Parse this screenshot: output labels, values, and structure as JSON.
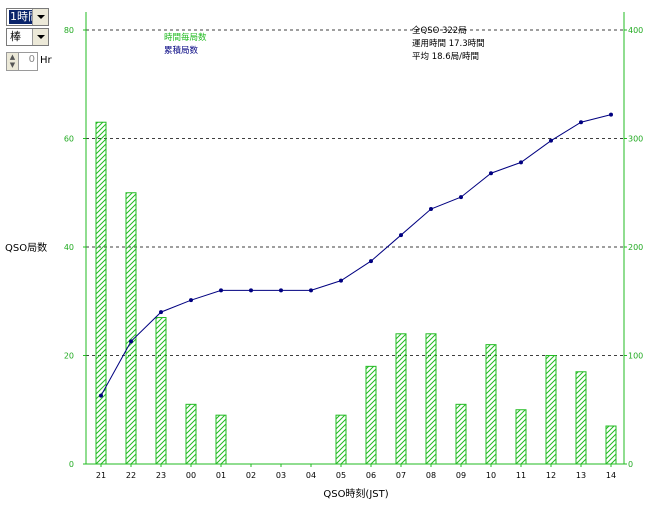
{
  "controls": {
    "mode_select": "1時間",
    "style_select": "棒",
    "hours_value": "0",
    "hours_unit": "Hr"
  },
  "colors": {
    "bar": "#22bb22",
    "line": "#000080",
    "axis": "#22bb22",
    "grid": "#000000"
  },
  "chart_data": {
    "type": "bar",
    "categories": [
      "21",
      "22",
      "23",
      "00",
      "01",
      "02",
      "03",
      "04",
      "05",
      "06",
      "07",
      "08",
      "09",
      "10",
      "11",
      "12",
      "13",
      "14"
    ],
    "series": [
      {
        "name": "時間毎局数",
        "type": "bar",
        "axis": "left",
        "values": [
          63,
          50,
          27,
          11,
          9,
          0,
          0,
          0,
          9,
          18,
          24,
          24,
          11,
          22,
          10,
          20,
          17,
          7
        ]
      },
      {
        "name": "累積局数",
        "type": "line",
        "axis": "right",
        "values": [
          63,
          113,
          140,
          151,
          160,
          160,
          160,
          160,
          169,
          187,
          211,
          235,
          246,
          268,
          278,
          298,
          315,
          322
        ]
      }
    ],
    "xlabel": "QSO時刻(JST)",
    "ylabel": "QSO局数",
    "ylim": [
      0,
      80
    ],
    "y2lim": [
      0,
      400
    ],
    "yticks": [
      "0",
      "20",
      "40",
      "60",
      "80"
    ],
    "y2ticks": [
      "0",
      "100",
      "200",
      "300",
      "400"
    ],
    "grid": "horizontal dashed",
    "summary": [
      "全QSO 322局",
      "運用時間 17.3時間",
      "平均 18.6局/時間"
    ]
  }
}
